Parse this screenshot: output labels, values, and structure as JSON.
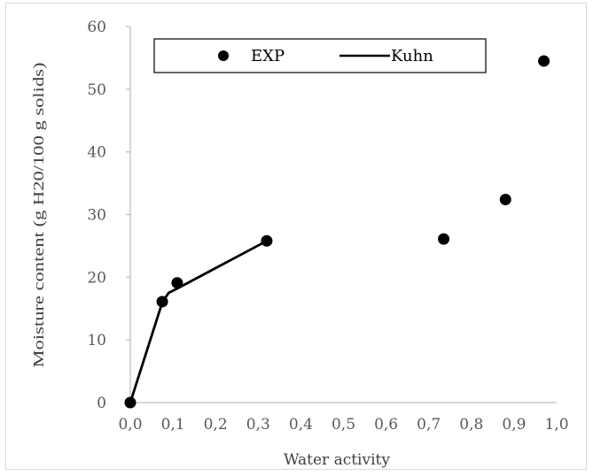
{
  "chart_data": {
    "type": "scatter",
    "title": "",
    "xlabel": "Water activity",
    "ylabel": "Moisture content (g H20/100 g solids)",
    "xlim": [
      0,
      1
    ],
    "ylim": [
      0,
      60
    ],
    "x_ticks": [
      "0,0",
      "0,1",
      "0,2",
      "0,3",
      "0,4",
      "0,5",
      "0,6",
      "0,7",
      "0,8",
      "0,9",
      "1,0"
    ],
    "y_ticks": [
      "0",
      "10",
      "20",
      "30",
      "40",
      "50",
      "60"
    ],
    "grid": false,
    "legend_position": "top",
    "series": [
      {
        "name": "EXP",
        "type": "scatter",
        "color": "#000000",
        "points": [
          {
            "x": 0.0,
            "y": 0.0
          },
          {
            "x": 0.075,
            "y": 16.1
          },
          {
            "x": 0.11,
            "y": 19.1
          },
          {
            "x": 0.32,
            "y": 25.8
          },
          {
            "x": 0.735,
            "y": 26.1
          },
          {
            "x": 0.88,
            "y": 32.4
          },
          {
            "x": 0.97,
            "y": 54.5
          }
        ]
      },
      {
        "name": "Kuhn",
        "type": "line",
        "color": "#000000",
        "points": [
          {
            "x": 0.0,
            "y": 0.0
          },
          {
            "x": 0.075,
            "y": 16.0
          },
          {
            "x": 0.09,
            "y": 17.5
          },
          {
            "x": 0.11,
            "y": 18.2
          },
          {
            "x": 0.32,
            "y": 25.8
          }
        ]
      }
    ]
  }
}
